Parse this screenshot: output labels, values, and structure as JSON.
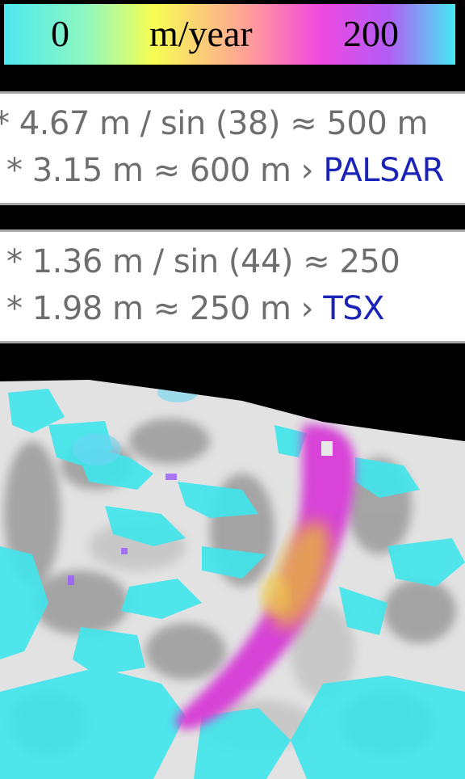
{
  "legend": {
    "min_label": "0",
    "unit_label": "m/year",
    "max_label": "200"
  },
  "palsar": {
    "line1": "* 4.67 m / sin (38) ≈ 500 m",
    "line2": "* 3.15 m ≈ 600 m ›",
    "sensor": "PALSAR"
  },
  "tsx": {
    "line1": "* 1.36 m / sin (44) ≈ 250",
    "line2": "* 1.98 m ≈ 250 m ›",
    "sensor": "TSX"
  },
  "colors": {
    "sensor_text": "#1a23b8",
    "body_text": "#6e6e6e",
    "slow_flow": "#3fe6ec",
    "fast_flow": "#d63ad6",
    "peak_flow": "#e8b43a"
  }
}
